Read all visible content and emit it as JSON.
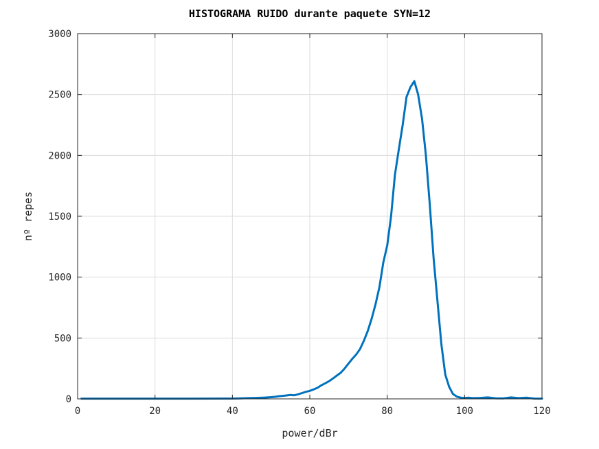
{
  "chart_data": {
    "type": "line",
    "title": "HISTOGRAMA RUIDO durante paquete SYN=12",
    "xlabel": "power/dBr",
    "ylabel": "nº repes",
    "xlim": [
      0,
      120
    ],
    "ylim": [
      0,
      3000
    ],
    "xticks": [
      0,
      20,
      40,
      60,
      80,
      100,
      120
    ],
    "yticks": [
      0,
      500,
      1000,
      1500,
      2000,
      2500,
      3000
    ],
    "xtick_labels": [
      "0",
      "20",
      "40",
      "60",
      "80",
      "100",
      "120"
    ],
    "ytick_labels": [
      "0",
      "500",
      "1000",
      "1500",
      "2000",
      "2500",
      "3000"
    ],
    "grid": true,
    "series": [
      {
        "color": "#0072bd",
        "x": [
          1,
          10,
          20,
          30,
          38,
          40,
          42,
          44,
          46,
          48,
          50,
          51,
          52,
          53,
          54,
          55,
          56,
          57,
          58,
          59,
          60,
          61,
          62,
          63,
          64,
          65,
          66,
          67,
          68,
          69,
          70,
          71,
          72,
          73,
          74,
          75,
          76,
          77,
          78,
          79,
          80,
          81,
          82,
          83,
          84,
          85,
          86,
          87,
          88,
          89,
          90,
          91,
          92,
          93,
          94,
          95,
          96,
          97,
          98,
          99,
          100,
          101,
          102,
          104,
          106,
          108,
          110,
          112,
          114,
          116,
          118,
          120
        ],
        "y": [
          2,
          2,
          2,
          2,
          3,
          3,
          4,
          6,
          8,
          10,
          14,
          17,
          22,
          25,
          28,
          32,
          30,
          38,
          48,
          58,
          66,
          78,
          92,
          112,
          128,
          146,
          168,
          192,
          215,
          250,
          290,
          330,
          365,
          410,
          480,
          560,
          660,
          780,
          920,
          1120,
          1260,
          1500,
          1840,
          2050,
          2250,
          2480,
          2560,
          2610,
          2500,
          2300,
          2000,
          1600,
          1150,
          800,
          450,
          200,
          100,
          40,
          18,
          10,
          8,
          10,
          6,
          8,
          12,
          5,
          4,
          12,
          6,
          10,
          3,
          2
        ]
      }
    ]
  }
}
